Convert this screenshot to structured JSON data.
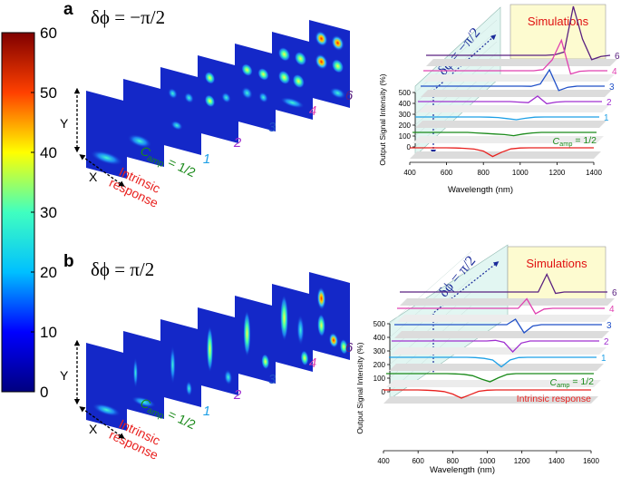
{
  "panels": [
    {
      "label": "a",
      "title": "δϕ = −π/2",
      "axis_x": "X",
      "axis_y": "Y",
      "image_labels": [
        {
          "lines": [
            "Intrinsic",
            "response"
          ],
          "color": "#e8201e"
        },
        {
          "text": "C",
          "sub": "amp",
          "after": " = 1/2",
          "color": "#1a8a1a"
        },
        {
          "text": "1",
          "color": "#1ea0e6"
        },
        {
          "text": "2",
          "color": "#a030d0"
        },
        {
          "text": "3",
          "color": "#2050c8"
        },
        {
          "text": "4",
          "color": "#e040b0"
        },
        {
          "text": "6",
          "color": "#5a2080"
        }
      ]
    },
    {
      "label": "b",
      "title": "δϕ = π/2",
      "axis_x": "X",
      "axis_y": "Y",
      "image_labels": [
        {
          "lines": [
            "Intrinsic",
            "response"
          ],
          "color": "#e8201e"
        },
        {
          "text": "C",
          "sub": "amp",
          "after": " = 1/2",
          "color": "#1a8a1a"
        },
        {
          "text": "1",
          "color": "#1ea0e6"
        },
        {
          "text": "2",
          "color": "#a030d0"
        },
        {
          "text": "3",
          "color": "#2050c8"
        },
        {
          "text": "4",
          "color": "#e040b0"
        },
        {
          "text": "6",
          "color": "#5a2080"
        }
      ]
    }
  ],
  "chart_data": [
    {
      "type": "colorbar",
      "ylim": [
        0,
        60
      ],
      "yticks": [
        0,
        10,
        20,
        30,
        40,
        50,
        60
      ],
      "colors": [
        "#00007f",
        "#0000ff",
        "#00c0ff",
        "#40ffc0",
        "#ffff00",
        "#ff4000",
        "#7f0000"
      ]
    },
    {
      "type": "waterfall",
      "annotation": "Simulations",
      "xlabel": "Wavelength (nm)",
      "ylabel": "Output Signal Intensity (%)",
      "xlim": [
        400,
        1400
      ],
      "xticks": [
        400,
        600,
        800,
        1000,
        1200,
        1400
      ],
      "ylim": [
        0,
        500
      ],
      "yticks": [
        0,
        100,
        200,
        300,
        400,
        500
      ],
      "x": [
        400,
        450,
        500,
        550,
        600,
        650,
        700,
        750,
        800,
        850,
        900,
        950,
        1000,
        1050,
        1100,
        1150,
        1200,
        1250,
        1300,
        1350,
        1400
      ],
      "series": [
        {
          "color": "#e8201e",
          "values": [
            100,
            100,
            100,
            100,
            100,
            98,
            95,
            88,
            70,
            20,
            60,
            90,
            98,
            100,
            100,
            100,
            100,
            100,
            100,
            100,
            100
          ]
        },
        {
          "name": {
            "text": "C",
            "sub": "amp",
            "after": " = 1/2"
          },
          "color": "#1a8a1a",
          "values": [
            100,
            100,
            100,
            100,
            100,
            100,
            100,
            95,
            90,
            85,
            80,
            70,
            85,
            95,
            100,
            100,
            100,
            100,
            100,
            100,
            100
          ]
        },
        {
          "name": "1",
          "color": "#1ea0e6",
          "values": [
            100,
            100,
            100,
            100,
            100,
            100,
            100,
            100,
            98,
            95,
            85,
            75,
            88,
            98,
            100,
            100,
            100,
            100,
            100,
            100,
            100
          ]
        },
        {
          "name": "2",
          "color": "#a030d0",
          "values": [
            100,
            100,
            100,
            100,
            100,
            100,
            100,
            100,
            100,
            100,
            100,
            95,
            90,
            150,
            80,
            95,
            100,
            100,
            100,
            100,
            100
          ]
        },
        {
          "name": "3",
          "color": "#2050c8",
          "values": [
            100,
            100,
            100,
            100,
            100,
            100,
            100,
            100,
            100,
            100,
            100,
            100,
            98,
            120,
            250,
            60,
            90,
            100,
            100,
            100,
            100
          ]
        },
        {
          "name": "4",
          "color": "#e040b0",
          "values": [
            100,
            100,
            100,
            100,
            100,
            100,
            100,
            100,
            100,
            100,
            100,
            100,
            100,
            110,
            200,
            380,
            70,
            95,
            100,
            100,
            100
          ]
        },
        {
          "name": "6",
          "color": "#5a2080",
          "values": [
            100,
            100,
            100,
            100,
            100,
            100,
            100,
            100,
            100,
            100,
            100,
            100,
            100,
            100,
            105,
            130,
            550,
            250,
            60,
            90,
            100
          ]
        }
      ]
    },
    {
      "type": "waterfall",
      "annotation": "Simulations",
      "xlabel": "Wavelength (nm)",
      "ylabel": "Output Signal Intensity (%)",
      "xlim": [
        400,
        1600
      ],
      "xticks": [
        400,
        600,
        800,
        1000,
        1200,
        1400,
        1600
      ],
      "ylim": [
        0,
        500
      ],
      "yticks": [
        0,
        100,
        200,
        300,
        400,
        500
      ],
      "x": [
        400,
        450,
        500,
        550,
        600,
        650,
        700,
        750,
        800,
        850,
        900,
        950,
        1000,
        1050,
        1100,
        1150,
        1200,
        1250,
        1300,
        1350,
        1400,
        1450,
        1500,
        1550,
        1600
      ],
      "series": [
        {
          "name": "Intrinsic response",
          "color": "#e8201e",
          "values": [
            100,
            100,
            100,
            100,
            100,
            98,
            95,
            88,
            70,
            40,
            65,
            90,
            98,
            100,
            100,
            100,
            100,
            100,
            100,
            100,
            100,
            100,
            100,
            100,
            100
          ]
        },
        {
          "name": {
            "text": "C",
            "sub": "amp",
            "after": " = 1/2"
          },
          "color": "#1a8a1a",
          "values": [
            100,
            100,
            100,
            100,
            100,
            100,
            100,
            100,
            98,
            95,
            85,
            60,
            40,
            70,
            95,
            100,
            100,
            100,
            100,
            100,
            100,
            100,
            100,
            100,
            100
          ]
        },
        {
          "name": "1",
          "color": "#1ea0e6",
          "values": [
            100,
            100,
            100,
            100,
            100,
            100,
            100,
            100,
            100,
            100,
            98,
            92,
            80,
            30,
            80,
            98,
            100,
            100,
            100,
            100,
            100,
            100,
            100,
            100,
            100
          ]
        },
        {
          "name": "2",
          "color": "#a030d0",
          "values": [
            100,
            100,
            100,
            100,
            100,
            100,
            100,
            100,
            100,
            100,
            100,
            100,
            105,
            90,
            20,
            85,
            100,
            100,
            100,
            100,
            100,
            100,
            100,
            100,
            100
          ]
        },
        {
          "name": "3",
          "color": "#2050c8",
          "values": [
            100,
            100,
            100,
            100,
            100,
            100,
            100,
            100,
            100,
            100,
            100,
            100,
            100,
            100,
            140,
            40,
            90,
            100,
            100,
            100,
            100,
            100,
            100,
            100,
            100
          ]
        },
        {
          "name": "4",
          "color": "#e040b0",
          "values": [
            100,
            100,
            100,
            100,
            100,
            100,
            100,
            100,
            100,
            100,
            100,
            100,
            100,
            100,
            100,
            170,
            60,
            95,
            100,
            100,
            100,
            100,
            100,
            100,
            100
          ]
        },
        {
          "name": "6",
          "color": "#5a2080",
          "values": [
            100,
            100,
            100,
            100,
            100,
            100,
            100,
            100,
            100,
            100,
            100,
            100,
            100,
            100,
            100,
            100,
            100,
            230,
            90,
            100,
            100,
            100,
            100,
            100,
            100
          ]
        }
      ]
    }
  ]
}
